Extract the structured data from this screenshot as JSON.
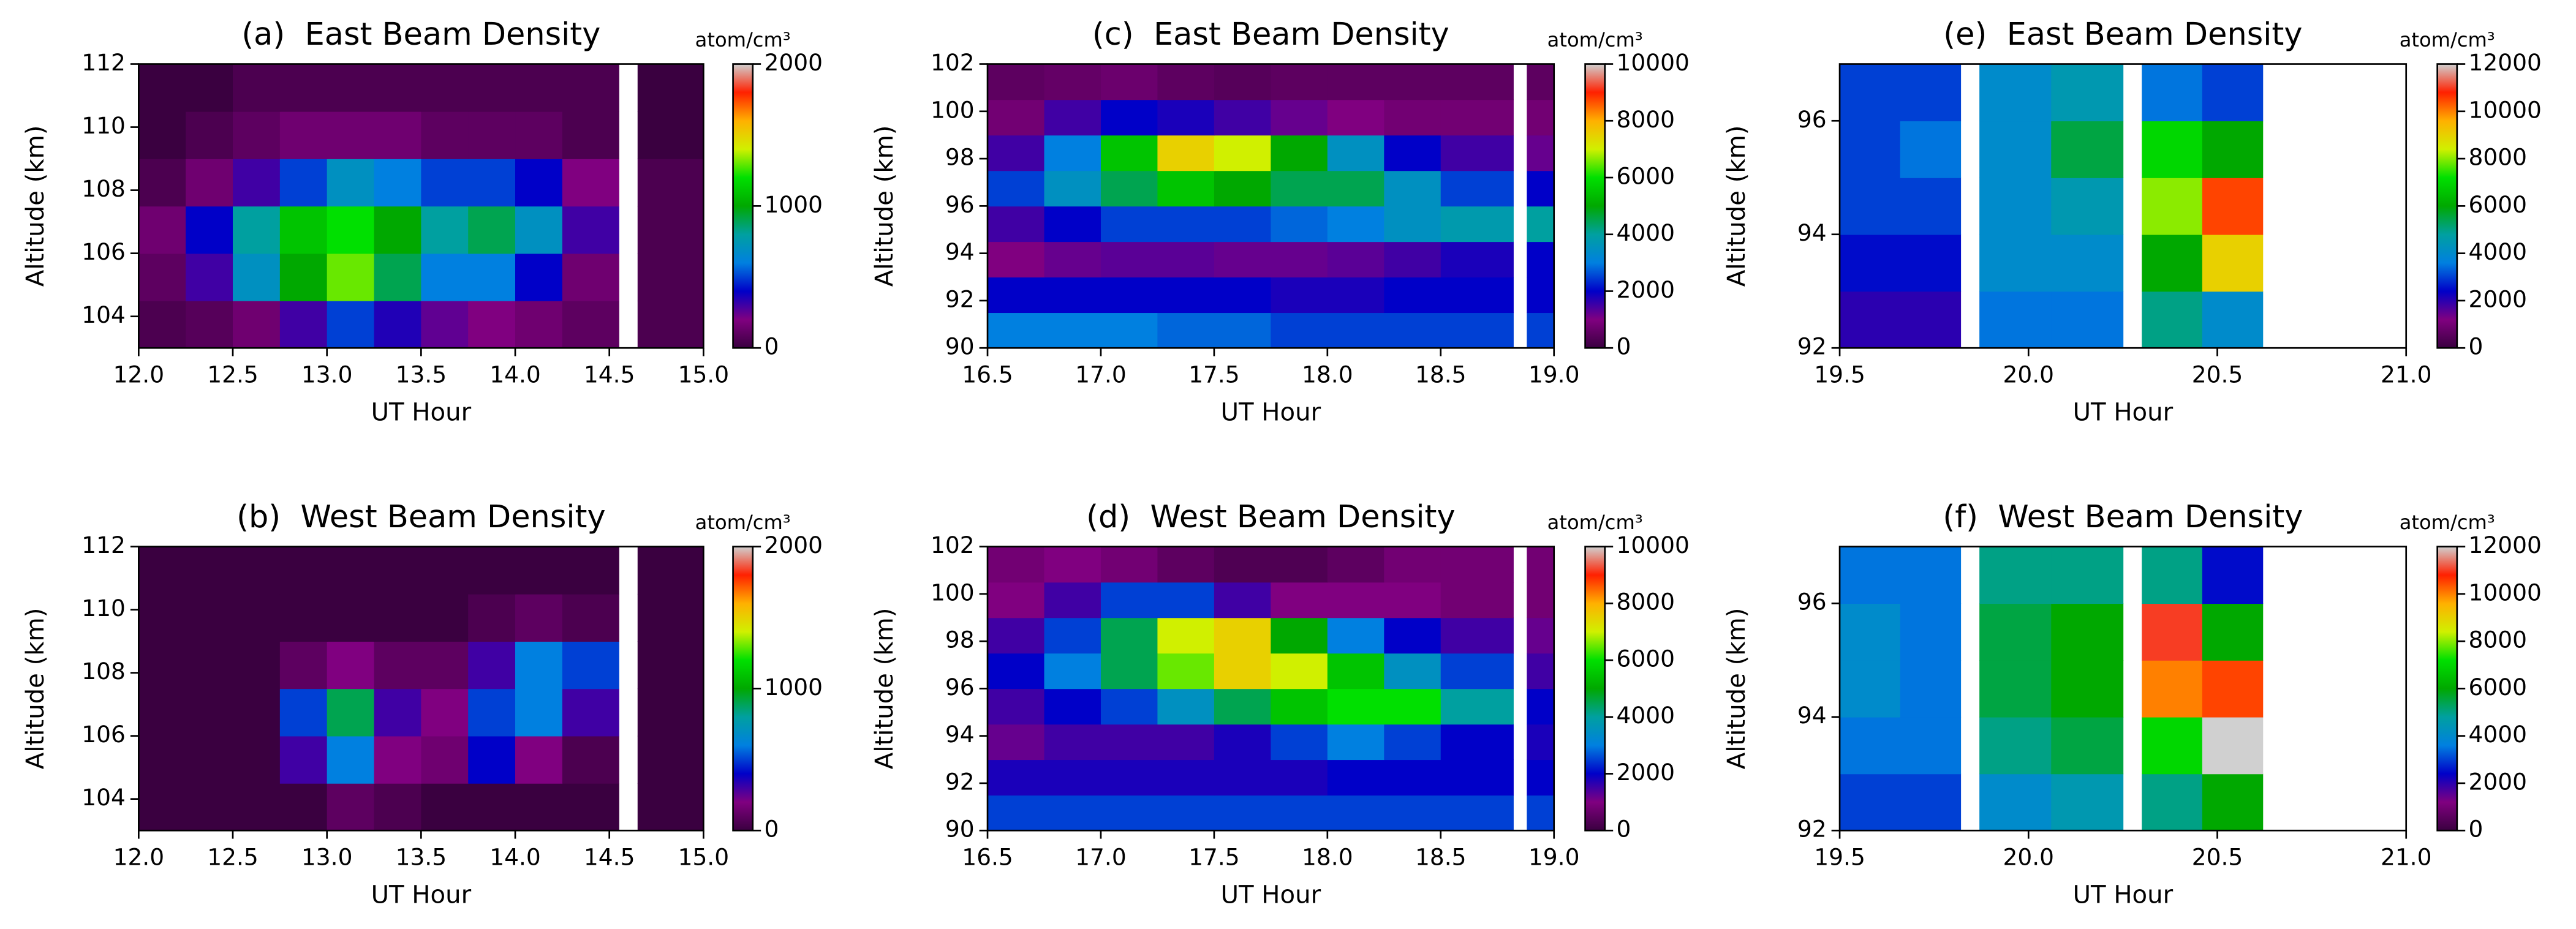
{
  "chart_data": [
    {
      "type": "contour",
      "title": "(a)  East Beam Density",
      "xlabel": "UT Hour",
      "ylabel": "Altitude (km)",
      "colorbar_label": "atom/cm³",
      "xlim": [
        12,
        15
      ],
      "ylim": [
        103,
        112
      ],
      "clim": [
        0,
        2000
      ],
      "xticks": [
        {
          "value": 12,
          "label": "12.0"
        },
        12.5,
        {
          "value": 13,
          "label": "13.0"
        },
        13.5,
        {
          "value": 14,
          "label": "14.0"
        },
        14.5,
        {
          "value": 15,
          "label": "15.0"
        }
      ],
      "yticks": [
        104,
        106,
        108,
        110,
        112
      ],
      "cticks": [
        0,
        1000,
        2000
      ],
      "colormap": [
        "#3a0040",
        "#800080",
        "#0000c8",
        "#0080e0",
        "#00a0a0",
        "#00a800",
        "#00e000",
        "#d0f000",
        "#ffb000",
        "#ff2000",
        "#d0d0d0"
      ],
      "xedges": [
        12,
        12.25,
        12.5,
        12.75,
        13,
        13.25,
        13.5,
        13.75,
        14,
        14.25,
        14.55,
        14.65,
        15
      ],
      "yedges": [
        103,
        104.5,
        106,
        107.5,
        109,
        110.5,
        112
      ],
      "z": [
        [
          50,
          80,
          150,
          300,
          500,
          350,
          250,
          200,
          150,
          100,
          null,
          50
        ],
        [
          100,
          300,
          700,
          1000,
          1300,
          900,
          600,
          600,
          400,
          150,
          null,
          50
        ],
        [
          150,
          400,
          800,
          1100,
          1200,
          1000,
          800,
          900,
          700,
          300,
          null,
          50
        ],
        [
          50,
          150,
          300,
          500,
          700,
          600,
          500,
          500,
          400,
          200,
          null,
          50
        ],
        [
          0,
          50,
          100,
          150,
          150,
          150,
          100,
          100,
          100,
          50,
          null,
          0
        ],
        [
          0,
          0,
          50,
          50,
          50,
          50,
          50,
          50,
          50,
          50,
          null,
          0
        ]
      ]
    },
    {
      "type": "contour",
      "title": "(b)  West Beam Density",
      "xlabel": "UT Hour",
      "ylabel": "Altitude (km)",
      "colorbar_label": "atom/cm³",
      "xlim": [
        12,
        15
      ],
      "ylim": [
        103,
        112
      ],
      "clim": [
        0,
        2000
      ],
      "xticks": [
        {
          "value": 12,
          "label": "12.0"
        },
        12.5,
        {
          "value": 13,
          "label": "13.0"
        },
        13.5,
        {
          "value": 14,
          "label": "14.0"
        },
        14.5,
        {
          "value": 15,
          "label": "15.0"
        }
      ],
      "yticks": [
        104,
        106,
        108,
        110,
        112
      ],
      "cticks": [
        0,
        1000,
        2000
      ],
      "colormap": [
        "#3a0040",
        "#800080",
        "#0000c8",
        "#0080e0",
        "#00a0a0",
        "#00a800",
        "#00e000",
        "#d0f000",
        "#ffb000",
        "#ff2000",
        "#d0d0d0"
      ],
      "xedges": [
        12,
        12.25,
        12.5,
        12.75,
        13,
        13.25,
        13.5,
        13.75,
        14,
        14.25,
        14.55,
        14.65,
        15
      ],
      "yedges": [
        103,
        104.5,
        106,
        107.5,
        109,
        110.5,
        112
      ],
      "z": [
        [
          0,
          0,
          0,
          0,
          100,
          50,
          0,
          0,
          0,
          0,
          null,
          0
        ],
        [
          0,
          0,
          0,
          300,
          600,
          200,
          150,
          400,
          200,
          50,
          null,
          0
        ],
        [
          0,
          0,
          0,
          500,
          900,
          300,
          200,
          500,
          600,
          300,
          null,
          0
        ],
        [
          0,
          0,
          0,
          100,
          200,
          100,
          100,
          300,
          600,
          500,
          null,
          0
        ],
        [
          0,
          0,
          0,
          0,
          0,
          0,
          0,
          50,
          100,
          50,
          null,
          0
        ],
        [
          0,
          0,
          0,
          0,
          0,
          0,
          0,
          0,
          0,
          0,
          null,
          0
        ]
      ]
    },
    {
      "type": "contour",
      "title": "(c)  East Beam Density",
      "xlabel": "UT Hour",
      "ylabel": "Altitude (km)",
      "colorbar_label": "atom/cm³",
      "xlim": [
        16.5,
        19
      ],
      "ylim": [
        90,
        102
      ],
      "clim": [
        0,
        10000
      ],
      "xticks": [
        16.5,
        {
          "value": 17,
          "label": "17.0"
        },
        17.5,
        {
          "value": 18,
          "label": "18.0"
        },
        18.5,
        {
          "value": 19,
          "label": "19.0"
        }
      ],
      "yticks": [
        90,
        92,
        94,
        96,
        98,
        100,
        102
      ],
      "cticks": [
        0,
        2000,
        4000,
        6000,
        8000,
        10000
      ],
      "colormap": [
        "#3a0040",
        "#800080",
        "#0000c8",
        "#0080e0",
        "#00a0a0",
        "#00a800",
        "#00e000",
        "#d0f000",
        "#ffb000",
        "#ff2000",
        "#d0d0d0"
      ],
      "xedges": [
        16.5,
        16.75,
        17,
        17.25,
        17.5,
        17.75,
        18,
        18.25,
        18.5,
        18.82,
        18.88,
        19
      ],
      "yedges": [
        90,
        91.5,
        93,
        94.5,
        96,
        97.5,
        99,
        100.5,
        102
      ],
      "z": [
        [
          3000,
          3000,
          3000,
          2800,
          2800,
          2500,
          2500,
          2500,
          2500,
          null,
          2500
        ],
        [
          2000,
          2000,
          2000,
          2000,
          2000,
          1800,
          1800,
          2000,
          2000,
          null,
          2000
        ],
        [
          1000,
          1200,
          1300,
          1300,
          1200,
          1200,
          1300,
          1500,
          1800,
          null,
          2000
        ],
        [
          1500,
          2000,
          2500,
          2500,
          2500,
          2800,
          3000,
          3500,
          3800,
          null,
          4000
        ],
        [
          2500,
          3500,
          4500,
          5500,
          5000,
          4500,
          4500,
          3500,
          2500,
          null,
          2000
        ],
        [
          1500,
          3000,
          5500,
          7500,
          7000,
          5000,
          3500,
          2000,
          1500,
          null,
          1200
        ],
        [
          800,
          1500,
          2000,
          1800,
          1500,
          1200,
          1000,
          800,
          800,
          null,
          800
        ],
        [
          500,
          600,
          700,
          500,
          400,
          500,
          500,
          500,
          500,
          null,
          500
        ]
      ]
    },
    {
      "type": "contour",
      "title": "(d)  West Beam Density",
      "xlabel": "UT Hour",
      "ylabel": "Altitude (km)",
      "colorbar_label": "atom/cm³",
      "xlim": [
        16.5,
        19
      ],
      "ylim": [
        90,
        102
      ],
      "clim": [
        0,
        10000
      ],
      "xticks": [
        16.5,
        {
          "value": 17,
          "label": "17.0"
        },
        17.5,
        {
          "value": 18,
          "label": "18.0"
        },
        18.5,
        {
          "value": 19,
          "label": "19.0"
        }
      ],
      "yticks": [
        90,
        92,
        94,
        96,
        98,
        100,
        102
      ],
      "cticks": [
        0,
        2000,
        4000,
        6000,
        8000,
        10000
      ],
      "colormap": [
        "#3a0040",
        "#800080",
        "#0000c8",
        "#0080e0",
        "#00a0a0",
        "#00a800",
        "#00e000",
        "#d0f000",
        "#ffb000",
        "#ff2000",
        "#d0d0d0"
      ],
      "xedges": [
        16.5,
        16.75,
        17,
        17.25,
        17.5,
        17.75,
        18,
        18.25,
        18.5,
        18.82,
        18.88,
        19
      ],
      "yedges": [
        90,
        91.5,
        93,
        94.5,
        96,
        97.5,
        99,
        100.5,
        102
      ],
      "z": [
        [
          2500,
          2500,
          2500,
          2500,
          2500,
          2500,
          2500,
          2500,
          2500,
          null,
          2500
        ],
        [
          1800,
          1800,
          1800,
          1800,
          1800,
          1800,
          2000,
          2000,
          2000,
          null,
          2000
        ],
        [
          1200,
          1500,
          1500,
          1500,
          1800,
          2500,
          3000,
          2500,
          2000,
          null,
          1800
        ],
        [
          1500,
          2000,
          2500,
          3500,
          4500,
          5500,
          6000,
          6000,
          4000,
          null,
          2000
        ],
        [
          2000,
          3000,
          4500,
          6500,
          7500,
          7000,
          5500,
          3500,
          2500,
          null,
          1500
        ],
        [
          1500,
          2500,
          4500,
          7000,
          7500,
          5000,
          3000,
          2000,
          1500,
          null,
          1200
        ],
        [
          1000,
          1500,
          2500,
          2500,
          1500,
          1000,
          1000,
          1000,
          800,
          null,
          800
        ],
        [
          800,
          1000,
          800,
          500,
          300,
          300,
          500,
          800,
          800,
          null,
          800
        ]
      ]
    },
    {
      "type": "contour",
      "title": "(e)  East Beam Density",
      "xlabel": "UT Hour",
      "ylabel": "Altitude (km)",
      "colorbar_label": "atom/cm³",
      "xlim": [
        19.5,
        21
      ],
      "ylim": [
        92,
        97
      ],
      "clim": [
        0,
        12000
      ],
      "xticks": [
        19.5,
        {
          "value": 20,
          "label": "20.0"
        },
        20.5,
        {
          "value": 21,
          "label": "21.0"
        }
      ],
      "yticks": [
        92,
        94,
        96
      ],
      "cticks": [
        0,
        2000,
        4000,
        6000,
        8000,
        10000,
        12000
      ],
      "colormap": [
        "#3a0040",
        "#800080",
        "#0000c8",
        "#0080e0",
        "#00a0a0",
        "#00a800",
        "#00e000",
        "#d0f000",
        "#ffb000",
        "#ff2000",
        "#d0d0d0"
      ],
      "xedges": [
        19.5,
        19.66,
        19.82,
        19.87,
        20.06,
        20.25,
        20.3,
        20.46,
        20.62,
        21
      ],
      "yedges": [
        92,
        93,
        94,
        95,
        96,
        97
      ],
      "z": [
        [
          2000,
          2000,
          null,
          3500,
          3500,
          null,
          5000,
          4000,
          null
        ],
        [
          2500,
          2500,
          null,
          4000,
          4000,
          null,
          6000,
          9000,
          null
        ],
        [
          3000,
          3000,
          null,
          4000,
          4500,
          null,
          8000,
          10500,
          null
        ],
        [
          3000,
          3500,
          null,
          4000,
          5500,
          null,
          7000,
          6000,
          null
        ],
        [
          3000,
          3000,
          null,
          4000,
          4500,
          null,
          3500,
          3000,
          null
        ]
      ]
    },
    {
      "type": "contour",
      "title": "(f)  West Beam Density",
      "xlabel": "UT Hour",
      "ylabel": "Altitude (km)",
      "colorbar_label": "atom/cm³",
      "xlim": [
        19.5,
        21
      ],
      "ylim": [
        92,
        97
      ],
      "clim": [
        0,
        12000
      ],
      "xticks": [
        19.5,
        {
          "value": 20,
          "label": "20.0"
        },
        20.5,
        {
          "value": 21,
          "label": "21.0"
        }
      ],
      "yticks": [
        92,
        94,
        96
      ],
      "cticks": [
        0,
        2000,
        4000,
        6000,
        8000,
        10000,
        12000
      ],
      "colormap": [
        "#3a0040",
        "#800080",
        "#0000c8",
        "#0080e0",
        "#00a0a0",
        "#00a800",
        "#00e000",
        "#d0f000",
        "#ffb000",
        "#ff2000",
        "#d0d0d0"
      ],
      "xedges": [
        19.5,
        19.66,
        19.82,
        19.87,
        20.06,
        20.25,
        20.3,
        20.46,
        20.62,
        21
      ],
      "yedges": [
        92,
        93,
        94,
        95,
        96,
        97
      ],
      "z": [
        [
          3000,
          3000,
          null,
          4000,
          4500,
          null,
          5000,
          6000,
          null
        ],
        [
          3500,
          3500,
          null,
          5000,
          5500,
          null,
          7000,
          12500,
          null
        ],
        [
          4000,
          3500,
          null,
          5500,
          6000,
          null,
          10000,
          10500,
          null
        ],
        [
          4000,
          3500,
          null,
          5500,
          6000,
          null,
          11000,
          6000,
          null
        ],
        [
          3500,
          3500,
          null,
          5000,
          5000,
          null,
          5000,
          2500,
          null
        ]
      ]
    }
  ]
}
